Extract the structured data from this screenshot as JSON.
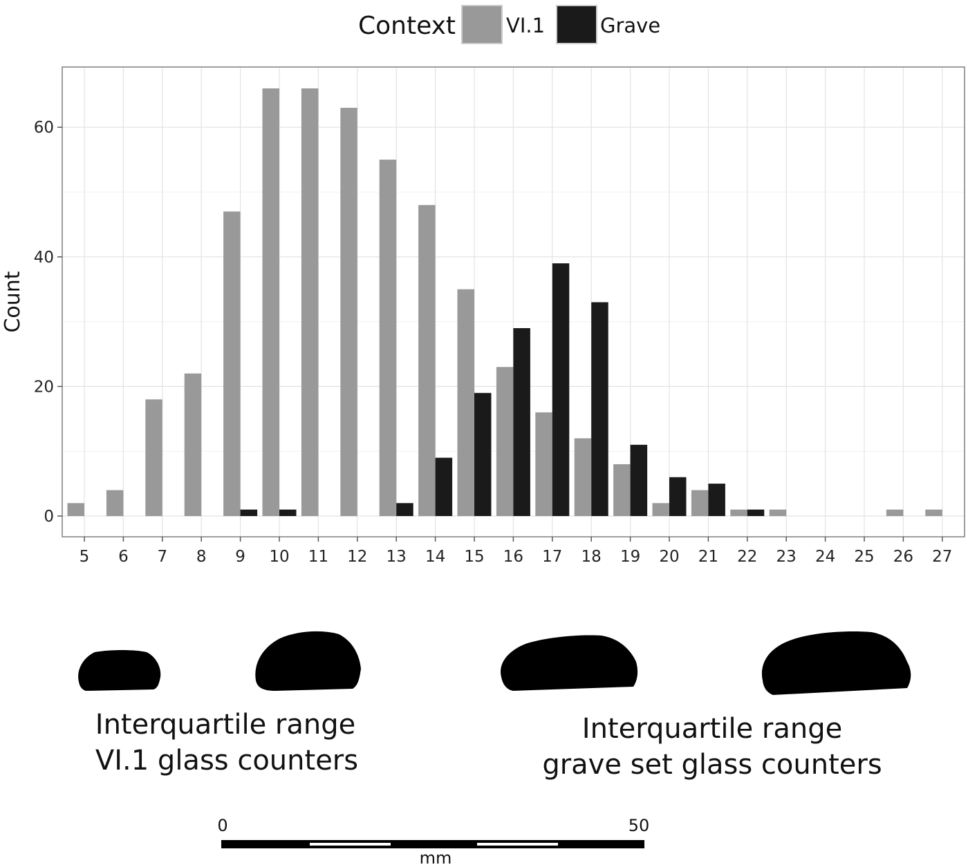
{
  "chart_data": {
    "type": "bar",
    "xlabel": "",
    "ylabel": "Count",
    "ylim": [
      0,
      67
    ],
    "yticks": [
      0,
      20,
      40,
      60
    ],
    "categories": [
      "5",
      "6",
      "7",
      "8",
      "9",
      "10",
      "11",
      "12",
      "13",
      "14",
      "15",
      "16",
      "17",
      "18",
      "19",
      "20",
      "21",
      "22",
      "23",
      "24",
      "25",
      "26",
      "27"
    ],
    "legend": {
      "title": "Context",
      "placement": "top"
    },
    "grid": true,
    "series": [
      {
        "name": "VI.1",
        "color": "#999999",
        "values": [
          2,
          4,
          18,
          22,
          47,
          66,
          66,
          63,
          55,
          48,
          35,
          23,
          16,
          12,
          8,
          2,
          4,
          1,
          1,
          0,
          0,
          1,
          1
        ]
      },
      {
        "name": "Grave",
        "color": "#1a1a1a",
        "values": [
          0,
          0,
          0,
          0,
          1,
          1,
          0,
          0,
          2,
          9,
          19,
          29,
          39,
          33,
          11,
          6,
          5,
          1,
          0,
          0,
          0,
          0,
          0
        ]
      }
    ]
  },
  "illustration": {
    "caption_left": [
      "Interquartile range",
      "VI.1 glass counters"
    ],
    "caption_right": [
      "Interquartile range",
      "grave set glass counters"
    ],
    "scale_bar": {
      "start_label": "0",
      "end_label": "50",
      "unit": "mm"
    }
  }
}
